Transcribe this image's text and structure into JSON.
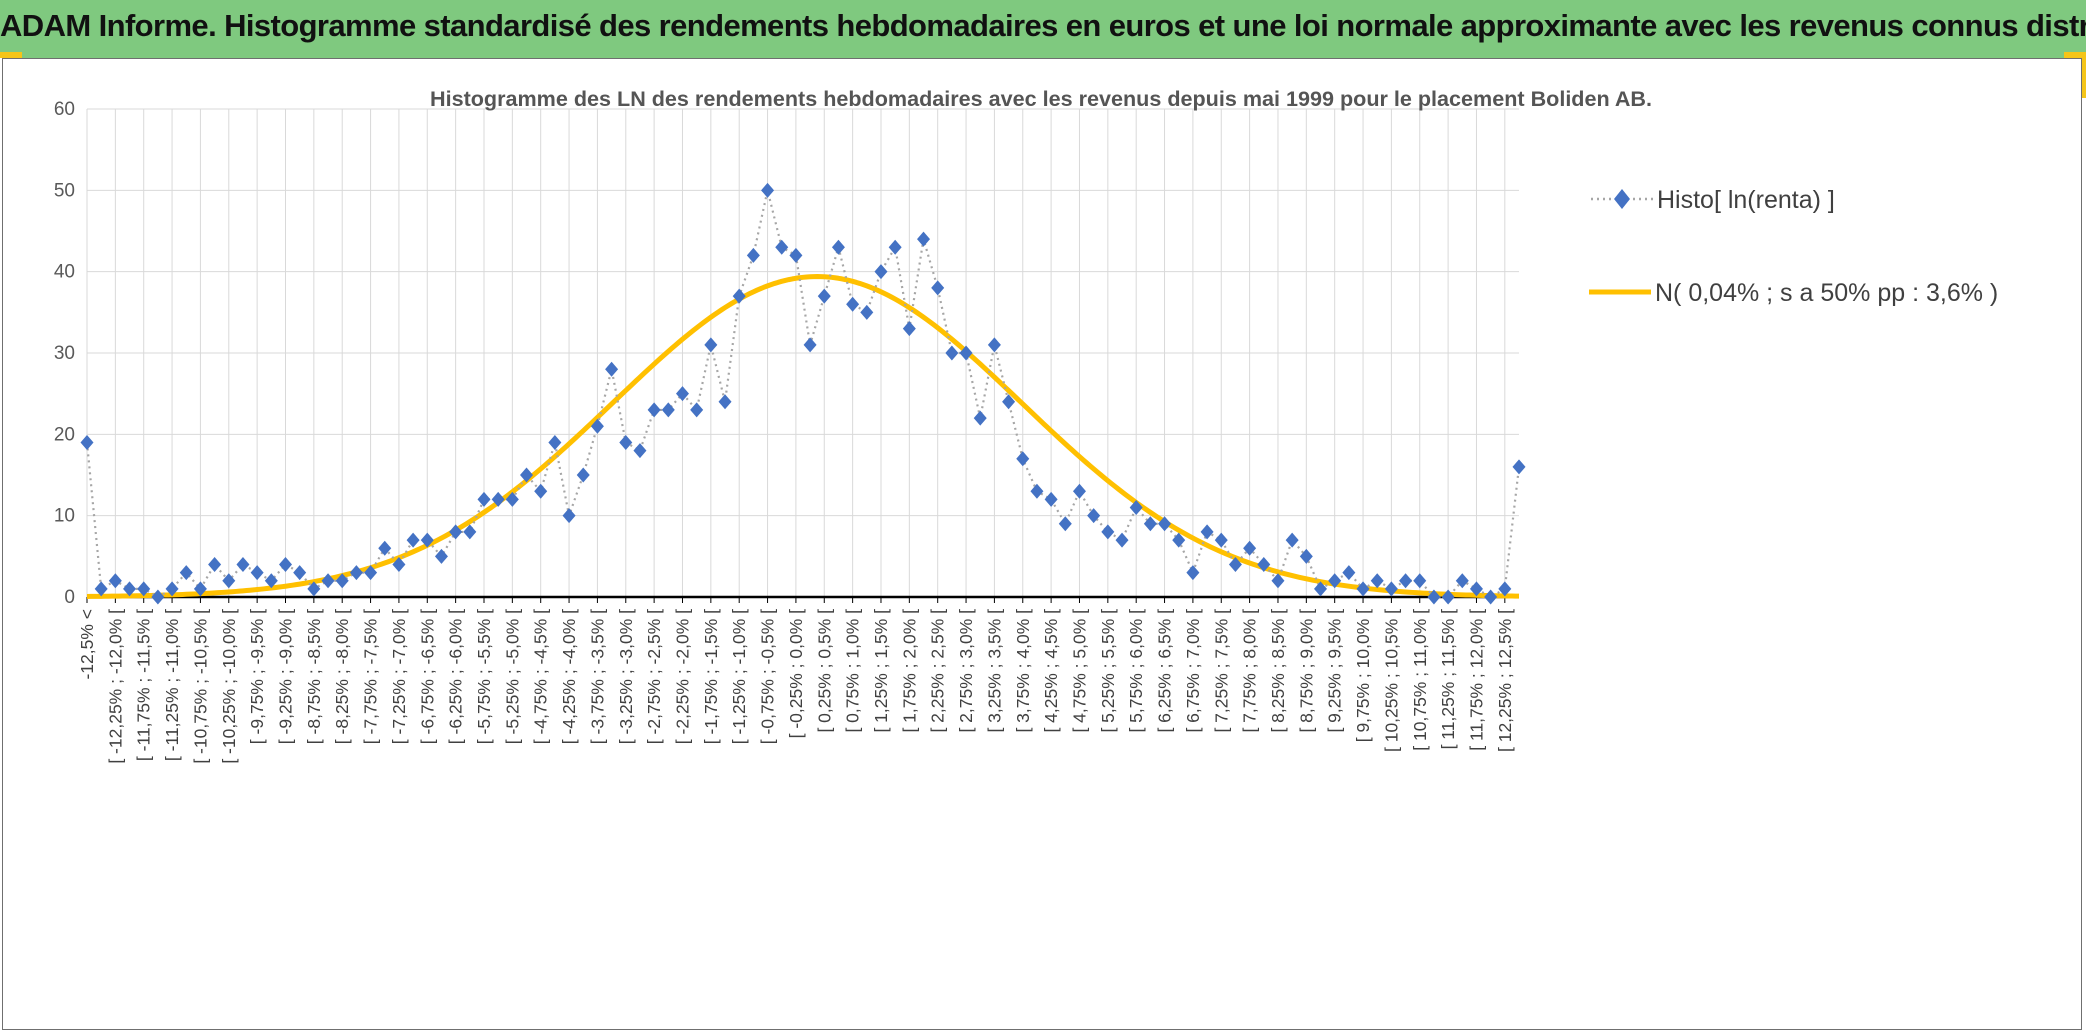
{
  "banner": {
    "title": "ADAM Informe. Histogramme standardisé des rendements hebdomadaires en euros et une loi normale approximante avec les revenus connus distribués"
  },
  "colors": {
    "banner_bg": "#7fc97f",
    "accent": "#f5c518",
    "series_marker": "#4472c4",
    "series_line": "#a6a6a6",
    "normal_curve": "#ffc000"
  },
  "chart_data": {
    "type": "line",
    "title": "Histogramme des LN des rendements hebdomadaires avec les revenus depuis mai 1999 pour le placement Boliden AB.",
    "xlabel": "",
    "ylabel": "",
    "ylim": [
      0,
      60
    ],
    "yticks": [
      0,
      10,
      20,
      30,
      40,
      50,
      60
    ],
    "grid": true,
    "legend": "top-right",
    "categories": [
      "-12,5% <",
      "[ -12,5% ; -12,25% [",
      "[ -12,25% ; -12,0% [",
      "[ -12,0% ; -11,75% [",
      "[ -11,75% ; -11,5% [",
      "[ -11,5% ; -11,25% [",
      "[ -11,25% ; -11,0% [",
      "[ -11,0% ; -10,75% [",
      "[ -10,75% ; -10,5% [",
      "[ -10,5% ; -10,25% [",
      "[ -10,25% ; -10,0% [",
      "[ -10,0% ; -9,75% [",
      "[ -9,75% ; -9,5% [",
      "[ -9,5% ; -9,25% [",
      "[ -9,25% ; -9,0% [",
      "[ -9,0% ; -8,75% [",
      "[ -8,75% ; -8,5% [",
      "[ -8,5% ; -8,25% [",
      "[ -8,25% ; -8,0% [",
      "[ -8,0% ; -7,75% [",
      "[ -7,75% ; -7,5% [",
      "[ -7,5% ; -7,25% [",
      "[ -7,25% ; -7,0% [",
      "[ -7,0% ; -6,75% [",
      "[ -6,75% ; -6,5% [",
      "[ -6,5% ; -6,25% [",
      "[ -6,25% ; -6,0% [",
      "[ -6,0% ; -5,75% [",
      "[ -5,75% ; -5,5% [",
      "[ -5,5% ; -5,25% [",
      "[ -5,25% ; -5,0% [",
      "[ -5,0% ; -4,75% [",
      "[ -4,75% ; -4,5% [",
      "[ -4,5% ; -4,25% [",
      "[ -4,25% ; -4,0% [",
      "[ -4,0% ; -3,75% [",
      "[ -3,75% ; -3,5% [",
      "[ -3,5% ; -3,25% [",
      "[ -3,25% ; -3,0% [",
      "[ -3,0% ; -2,75% [",
      "[ -2,75% ; -2,5% [",
      "[ -2,5% ; -2,25% [",
      "[ -2,25% ; -2,0% [",
      "[ -2,0% ; -1,75% [",
      "[ -1,75% ; -1,5% [",
      "[ -1,5% ; -1,25% [",
      "[ -1,25% ; -1,0% [",
      "[ -1,0% ; -0,75% [",
      "[ -0,75% ; -0,5% [",
      "[ -0,5% ; -0,25% [",
      "[ -0,25% ; 0,0% [",
      "[ 0,0% ; 0,25% [",
      "[ 0,25% ; 0,5% [",
      "[ 0,5% ; 0,75% [",
      "[ 0,75% ; 1,0% [",
      "[ 1,0% ; 1,25% [",
      "[ 1,25% ; 1,5% [",
      "[ 1,5% ; 1,75% [",
      "[ 1,75% ; 2,0% [",
      "[ 2,0% ; 2,25% [",
      "[ 2,25% ; 2,5% [",
      "[ 2,5% ; 2,75% [",
      "[ 2,75% ; 3,0% [",
      "[ 3,0% ; 3,25% [",
      "[ 3,25% ; 3,5% [",
      "[ 3,5% ; 3,75% [",
      "[ 3,75% ; 4,0% [",
      "[ 4,0% ; 4,25% [",
      "[ 4,25% ; 4,5% [",
      "[ 4,5% ; 4,75% [",
      "[ 4,75% ; 5,0% [",
      "[ 5,0% ; 5,25% [",
      "[ 5,25% ; 5,5% [",
      "[ 5,5% ; 5,75% [",
      "[ 5,75% ; 6,0% [",
      "[ 6,0% ; 6,25% [",
      "[ 6,25% ; 6,5% [",
      "[ 6,5% ; 6,75% [",
      "[ 6,75% ; 7,0% [",
      "[ 7,0% ; 7,25% [",
      "[ 7,25% ; 7,5% [",
      "[ 7,5% ; 7,75% [",
      "[ 7,75% ; 8,0% [",
      "[ 8,0% ; 8,25% [",
      "[ 8,25% ; 8,5% [",
      "[ 8,5% ; 8,75% [",
      "[ 8,75% ; 9,0% [",
      "[ 9,0% ; 9,25% [",
      "[ 9,25% ; 9,5% [",
      "[ 9,5% ; 9,75% [",
      "[ 9,75% ; 10,0% [",
      "[ 10,0% ; 10,25% [",
      "[ 10,25% ; 10,5% [",
      "[ 10,5% ; 10,75% [",
      "[ 10,75% ; 11,0% [",
      "[ 11,0% ; 11,25% [",
      "[ 11,25% ; 11,5% [",
      "[ 11,5% ; 11,75% [",
      "[ 11,75% ; 12,0% [",
      "[ 12,0% ; 12,25% [",
      "[ 12,25% ; 12,5% [",
      "12,5% <"
    ],
    "visible_label_step": 2,
    "series": [
      {
        "name": "Histo[ ln(renta) ]",
        "style": "markers-dotted",
        "values": [
          19,
          1,
          2,
          1,
          1,
          0,
          1,
          3,
          1,
          4,
          2,
          4,
          3,
          2,
          4,
          3,
          1,
          2,
          2,
          3,
          3,
          6,
          4,
          7,
          7,
          5,
          8,
          8,
          12,
          12,
          12,
          15,
          13,
          19,
          10,
          15,
          21,
          28,
          19,
          18,
          23,
          23,
          25,
          23,
          31,
          24,
          37,
          42,
          50,
          43,
          42,
          31,
          37,
          43,
          36,
          35,
          40,
          43,
          33,
          44,
          38,
          30,
          30,
          22,
          31,
          24,
          17,
          13,
          12,
          9,
          13,
          10,
          8,
          7,
          11,
          9,
          9,
          7,
          3,
          8,
          7,
          4,
          6,
          4,
          2,
          7,
          5,
          1,
          2,
          3,
          1,
          2,
          1,
          2,
          2,
          0,
          0,
          2,
          1,
          0,
          1,
          16
        ]
      },
      {
        "name": "N( 0,04% ; s a 50% pp : 3,6% )",
        "style": "line",
        "mean_category_index": 51.5,
        "sd_categories": 14.4,
        "peak": 39.4
      }
    ]
  }
}
